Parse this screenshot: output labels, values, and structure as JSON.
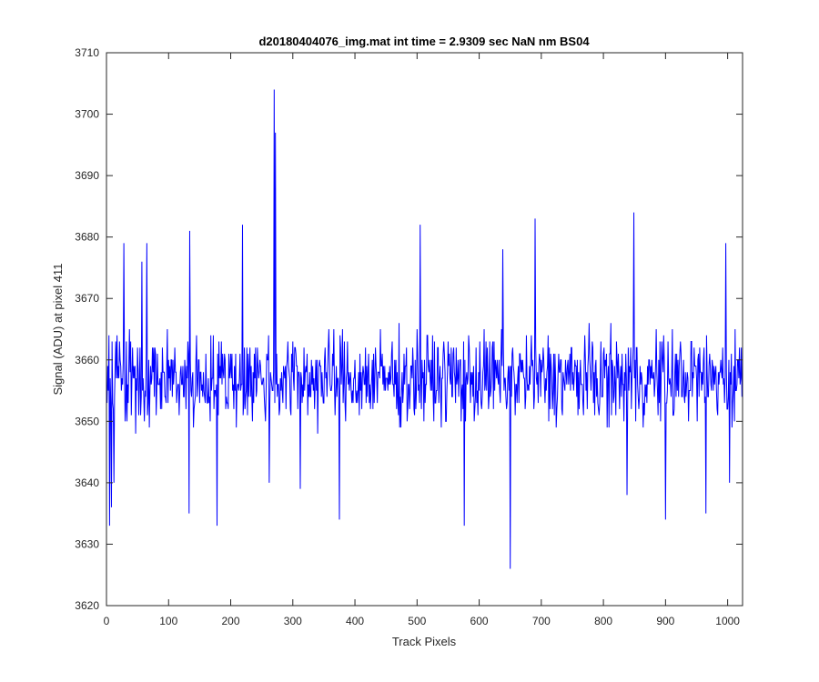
{
  "chart_data": {
    "type": "line",
    "title": "d20180404076_img.mat int time = 2.9309 sec  NaN nm BS04",
    "xlabel": "Track Pixels",
    "ylabel": "Signal (ADU) at pixel 411",
    "xlim": [
      0,
      1024
    ],
    "ylim": [
      3620,
      3710
    ],
    "xticks": [
      0,
      100,
      200,
      300,
      400,
      500,
      600,
      700,
      800,
      900,
      1000
    ],
    "yticks": [
      3620,
      3630,
      3640,
      3650,
      3660,
      3670,
      3680,
      3690,
      3700,
      3710
    ],
    "grid": false,
    "series_color": "#0000ff",
    "series": [
      {
        "name": "",
        "baseline": 3657,
        "noise_amplitude": 6,
        "x_start": 1,
        "x_end": 1024,
        "peaks": [
          {
            "x": 5,
            "y": 3633
          },
          {
            "x": 8,
            "y": 3636
          },
          {
            "x": 12,
            "y": 3640
          },
          {
            "x": 28,
            "y": 3679
          },
          {
            "x": 57,
            "y": 3676
          },
          {
            "x": 65,
            "y": 3679
          },
          {
            "x": 133,
            "y": 3635
          },
          {
            "x": 134,
            "y": 3681
          },
          {
            "x": 178,
            "y": 3633
          },
          {
            "x": 219,
            "y": 3682
          },
          {
            "x": 262,
            "y": 3640
          },
          {
            "x": 270,
            "y": 3704
          },
          {
            "x": 272,
            "y": 3697
          },
          {
            "x": 312,
            "y": 3639
          },
          {
            "x": 375,
            "y": 3634
          },
          {
            "x": 505,
            "y": 3682
          },
          {
            "x": 576,
            "y": 3633
          },
          {
            "x": 638,
            "y": 3678
          },
          {
            "x": 650,
            "y": 3626
          },
          {
            "x": 690,
            "y": 3683
          },
          {
            "x": 838,
            "y": 3638
          },
          {
            "x": 849,
            "y": 3684
          },
          {
            "x": 900,
            "y": 3634
          },
          {
            "x": 965,
            "y": 3635
          },
          {
            "x": 997,
            "y": 3679
          },
          {
            "x": 1003,
            "y": 3640
          }
        ]
      }
    ]
  }
}
